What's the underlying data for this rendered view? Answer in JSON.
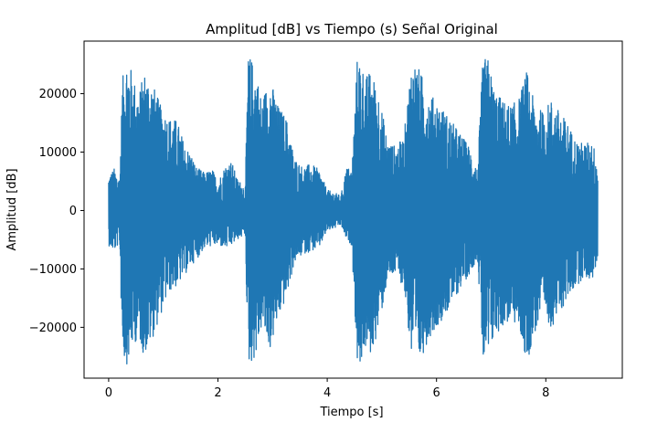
{
  "chart_data": {
    "type": "line",
    "title": "Amplitud [dB] vs Tiempo (s) Señal Original",
    "xlabel": "Tiempo [s]",
    "ylabel": "Amplitud [dB]",
    "xlim": [
      -0.45,
      9.4
    ],
    "ylim": [
      -28700,
      29000
    ],
    "xticks": [
      0,
      2,
      4,
      6,
      8
    ],
    "xtick_labels": [
      "0",
      "2",
      "4",
      "6",
      "8"
    ],
    "yticks": [
      -20000,
      -10000,
      0,
      10000,
      20000
    ],
    "ytick_labels": [
      "−20000",
      "−10000",
      "0",
      "10000",
      "20000"
    ],
    "grid": false,
    "legend": "none",
    "series": [
      {
        "color": "#1f77b4",
        "x_range": [
          0,
          8.95
        ],
        "envelope": {
          "t": [
            0,
            0.1,
            0.2,
            0.25,
            0.3,
            0.35,
            0.45,
            0.55,
            0.65,
            0.8,
            0.95,
            1.1,
            1.25,
            1.4,
            1.5,
            1.6,
            1.75,
            1.9,
            2.0,
            2.15,
            2.25,
            2.35,
            2.45,
            2.5,
            2.55,
            2.6,
            2.7,
            2.8,
            2.95,
            3.1,
            3.25,
            3.4,
            3.55,
            3.7,
            3.85,
            4.0,
            4.15,
            4.25,
            4.35,
            4.45,
            4.55,
            4.6,
            4.7,
            4.8,
            4.95,
            5.1,
            5.25,
            5.4,
            5.55,
            5.7,
            5.85,
            6.0,
            6.15,
            6.3,
            6.45,
            6.6,
            6.75,
            6.85,
            6.95,
            7.05,
            7.2,
            7.35,
            7.5,
            7.65,
            7.8,
            7.95,
            8.1,
            8.25,
            8.4,
            8.55,
            8.7,
            8.85,
            8.95
          ],
          "upper": [
            6000,
            7200,
            5500,
            22000,
            26300,
            26300,
            23000,
            20000,
            24000,
            22000,
            18000,
            16000,
            15500,
            11000,
            10000,
            7500,
            6500,
            7000,
            5000,
            8000,
            8500,
            5500,
            4500,
            4000,
            26300,
            26300,
            24000,
            19000,
            23000,
            18000,
            16000,
            9000,
            7500,
            8000,
            7000,
            3500,
            3000,
            2500,
            7500,
            7000,
            26300,
            26300,
            23000,
            24000,
            20000,
            12000,
            11000,
            12500,
            26300,
            24000,
            20000,
            19000,
            17000,
            15000,
            13000,
            11000,
            7000,
            26300,
            26000,
            21000,
            19000,
            18000,
            19000,
            24000,
            18000,
            17000,
            19000,
            17000,
            15000,
            12000,
            11500,
            12000,
            8500
          ],
          "lower": [
            -6000,
            -7000,
            -5500,
            -24000,
            -26300,
            -26300,
            -23000,
            -22000,
            -25000,
            -22000,
            -18000,
            -14000,
            -13000,
            -11000,
            -9500,
            -8500,
            -6500,
            -6000,
            -6000,
            -6500,
            -6000,
            -5000,
            -4500,
            -4000,
            -26300,
            -26300,
            -25000,
            -20000,
            -24000,
            -19000,
            -15000,
            -9000,
            -7500,
            -7000,
            -6500,
            -3500,
            -3000,
            -2500,
            -5000,
            -6000,
            -26300,
            -26300,
            -24000,
            -25000,
            -20000,
            -12000,
            -11000,
            -13000,
            -26300,
            -26000,
            -22000,
            -20000,
            -18000,
            -16000,
            -13000,
            -11000,
            -8000,
            -26300,
            -26000,
            -22000,
            -20000,
            -19000,
            -20000,
            -26300,
            -21000,
            -18000,
            -20000,
            -18000,
            -15000,
            -13000,
            -11500,
            -12000,
            -8500
          ]
        }
      }
    ]
  }
}
